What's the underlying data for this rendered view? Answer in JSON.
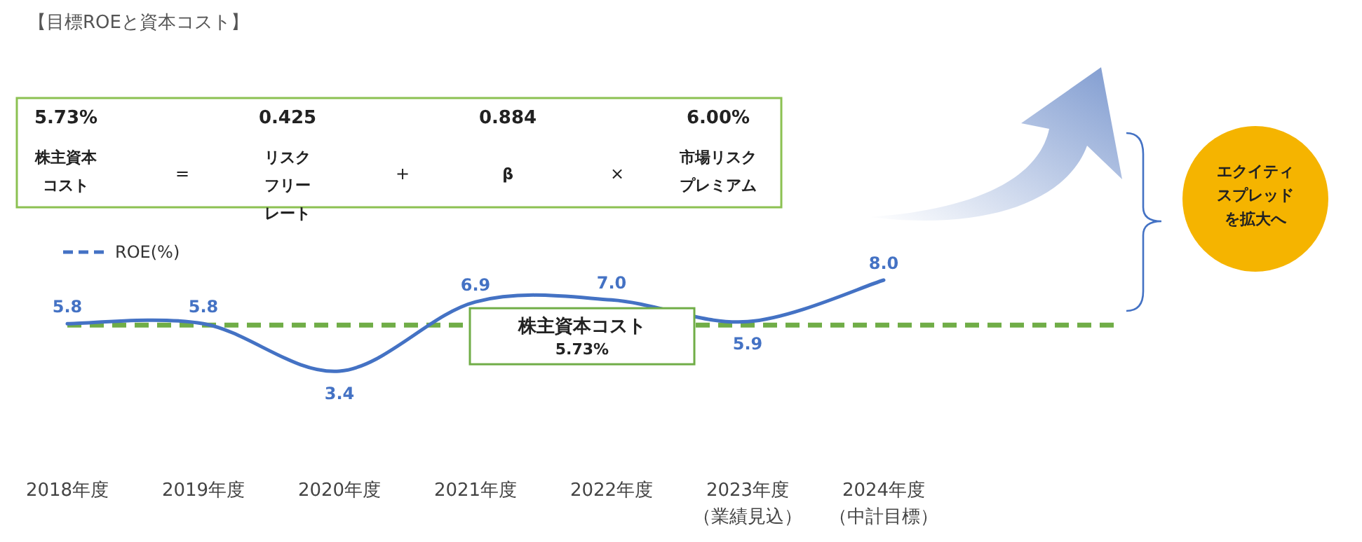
{
  "chart_data": {
    "type": "line",
    "title": "【目標ROEと資本コスト】",
    "categories": [
      "2018年度",
      "2019年度",
      "2020年度",
      "2021年度",
      "2022年度",
      "2023年度（業績見込）",
      "2024年度（中計目標）"
    ],
    "series": [
      {
        "name": "ROE(%)",
        "color": "#4472c4",
        "values": [
          5.8,
          5.8,
          3.4,
          6.9,
          7.0,
          5.9,
          8.0
        ],
        "value_labels": [
          "5.8",
          "5.8",
          "3.4",
          "6.9",
          "7.0",
          "5.9",
          "8.0"
        ]
      }
    ],
    "legend": "top left",
    "ref_lines": [
      {
        "axis": "y",
        "value": 5.73,
        "label": "株主資本コスト\n5.73%",
        "color": "#70ad47",
        "line_style": "dashed"
      }
    ],
    "annotations": [
      "5.73%",
      "株主資本コスト",
      "=",
      "0.425",
      "リスクフリーレート",
      "+",
      "0.884",
      "β",
      "×",
      "6.00%",
      "市場リスクプレミアム",
      "エクイティスプレッドを拡大へ"
    ]
  }
}
